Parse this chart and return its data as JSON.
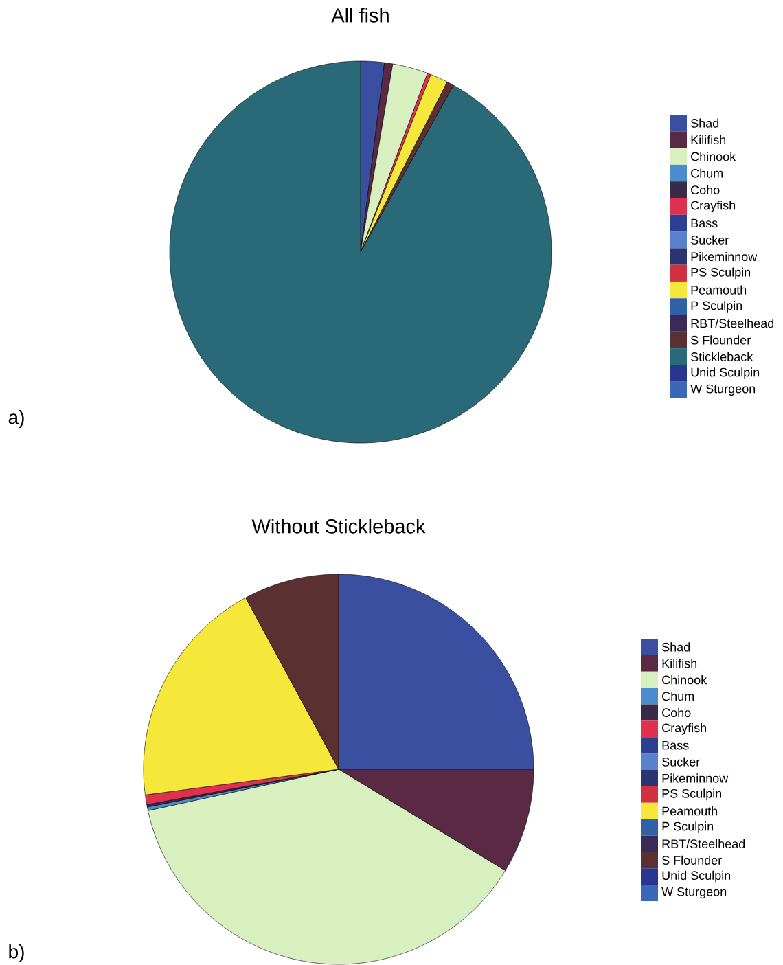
{
  "chart_data": [
    {
      "type": "pie",
      "title": "All fish",
      "legend": "right",
      "annotations": [
        "a)"
      ],
      "categories": [
        "Shad",
        "Kilifish",
        "Chinook",
        "Chum",
        "Coho",
        "Crayfish",
        "Bass",
        "Sucker",
        "Pikeminnow",
        "PS Sculpin",
        "Peamouth",
        "P Sculpin",
        "RBT/Steelhead",
        "S Flounder",
        "Stickleback",
        "Unid Sculpin",
        "W Sturgeon"
      ],
      "values": [
        2.0,
        0.7,
        3.0,
        0,
        0,
        0.3,
        0,
        0,
        0,
        0,
        1.5,
        0,
        0,
        0.6,
        91.9,
        0,
        0
      ],
      "colors": [
        "#3a4fa0",
        "#5a2a45",
        "#d8f0c0",
        "#4a8ccc",
        "#3a2a4a",
        "#e03050",
        "#2a3f8f",
        "#5a80d0",
        "#2a3570",
        "#d03040",
        "#f5e83a",
        "#3060a8",
        "#3a2a5a",
        "#5a3030",
        "#2a6a78",
        "#2a3590",
        "#3a68b8"
      ]
    },
    {
      "type": "pie",
      "title": "Without Stickleback",
      "legend": "right",
      "annotations": [
        "b)"
      ],
      "categories": [
        "Shad",
        "Kilifish",
        "Chinook",
        "Chum",
        "Coho",
        "Crayfish",
        "Bass",
        "Sucker",
        "Pikeminnow",
        "PS Sculpin",
        "Peamouth",
        "P Sculpin",
        "RBT/Steelhead",
        "S Flounder",
        "Unid Sculpin",
        "W Sturgeon"
      ],
      "values": [
        25,
        8.7,
        37.9,
        0.3,
        0.2,
        0.8,
        0,
        0,
        0,
        0,
        19.2,
        0,
        0,
        7.9,
        0,
        0
      ],
      "colors": [
        "#3a4fa0",
        "#5a2a45",
        "#d8f0c0",
        "#4a8ccc",
        "#3a2a4a",
        "#e03050",
        "#2a3f8f",
        "#5a80d0",
        "#2a3570",
        "#d03040",
        "#f5e83a",
        "#3060a8",
        "#3a2a5a",
        "#5a3030",
        "#2a3590",
        "#3a68b8"
      ]
    }
  ]
}
